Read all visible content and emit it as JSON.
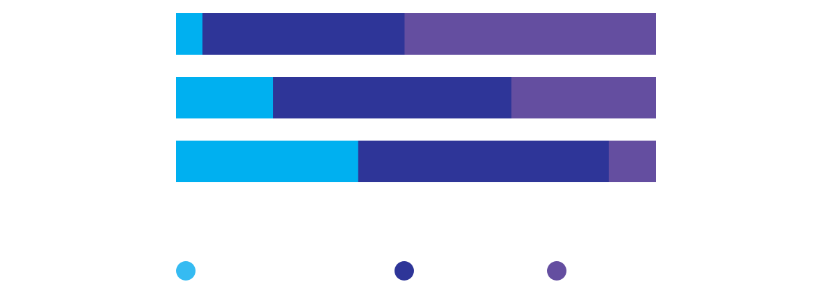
{
  "chart_data": {
    "type": "bar",
    "orientation": "horizontal",
    "stacked": "percent",
    "title": "",
    "xlabel": "",
    "ylabel": "",
    "xlim": [
      0,
      100
    ],
    "grid": false,
    "legend_position": "bottom",
    "categories": [
      "",
      "",
      ""
    ],
    "series": [
      {
        "color": "#00B0F0",
        "values": [
          5.5,
          20.2,
          37.9
        ]
      },
      {
        "color": "#2E3598",
        "values": [
          42.1,
          49.7,
          52.3
        ]
      },
      {
        "color": "#644EA0",
        "values": [
          52.4,
          30.1,
          9.8
        ]
      }
    ],
    "legend_markers": [
      "#35BBF2",
      "#2E3598",
      "#644EA0"
    ]
  }
}
